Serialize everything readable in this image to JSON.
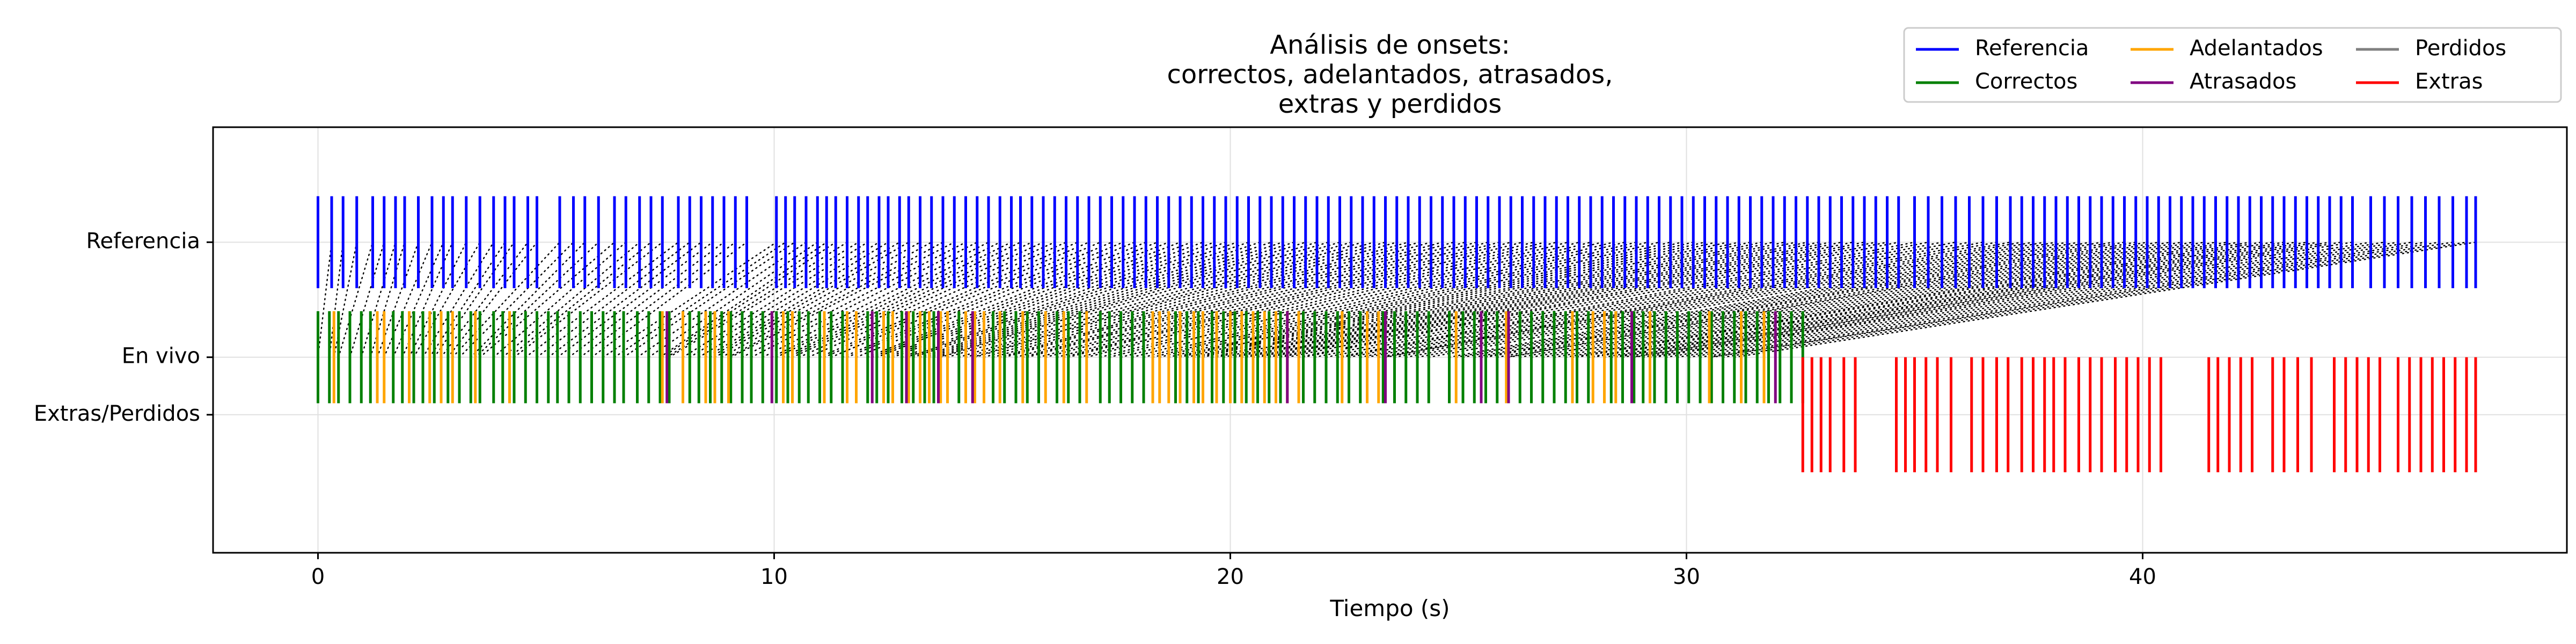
{
  "chart_data": {
    "type": "event",
    "title_lines": [
      "Análisis de onsets:",
      "correctos, adelantados, atrasados,",
      "extras y perdidos"
    ],
    "xlabel": "Tiempo (s)",
    "ylabel": "",
    "xlim": [
      -2.3,
      49.3
    ],
    "xticks": [
      0,
      10,
      20,
      30,
      40
    ],
    "grid": true,
    "rows": [
      {
        "name": "Referencia",
        "y": 1.0
      },
      {
        "name": "En vivo",
        "y": 0.0
      },
      {
        "name": "Extras/Perdidos",
        "y": -0.5
      }
    ],
    "ylim": [
      -1.7,
      2.0
    ],
    "legend": {
      "placement": "top-right",
      "entries": [
        {
          "name": "Referencia",
          "color": "#0000ff"
        },
        {
          "name": "Correctos",
          "color": "#008000"
        },
        {
          "name": "Adelantados",
          "color": "#ffa500"
        },
        {
          "name": "Atrasados",
          "color": "#800080"
        },
        {
          "name": "Perdidos",
          "color": "#808080"
        },
        {
          "name": "Extras",
          "color": "#ff0000"
        }
      ]
    },
    "series": {
      "reference": {
        "color": "#0000ff",
        "y_range": [
          0.6,
          1.4
        ],
        "x": [
          0.0,
          0.3,
          0.55,
          0.85,
          1.2,
          1.45,
          1.7,
          1.9,
          2.2,
          2.5,
          2.75,
          2.95,
          3.25,
          3.55,
          3.85,
          4.1,
          4.3,
          4.6,
          4.8,
          5.3,
          5.6,
          5.85,
          6.15,
          6.5,
          6.75,
          7.05,
          7.3,
          7.55,
          7.9,
          8.15,
          8.4,
          8.65,
          8.9,
          9.15,
          9.4,
          10.05,
          10.25,
          10.45,
          10.7,
          10.95,
          11.15,
          11.35,
          11.6,
          11.85,
          12.05,
          12.3,
          12.5,
          12.75,
          12.95,
          13.2,
          13.45,
          13.7,
          13.95,
          14.2,
          14.45,
          14.7,
          14.95,
          15.2,
          15.4,
          15.65,
          15.9,
          16.15,
          16.4,
          16.65,
          16.9,
          17.15,
          17.4,
          17.65,
          17.9,
          18.15,
          18.4,
          18.65,
          18.9,
          19.15,
          19.4,
          19.65,
          19.9,
          20.15,
          20.4,
          20.65,
          20.9,
          21.15,
          21.4,
          21.65,
          21.9,
          22.15,
          22.4,
          22.65,
          22.9,
          23.15,
          23.4,
          23.65,
          23.9,
          24.15,
          24.4,
          24.65,
          24.9,
          25.15,
          25.4,
          25.65,
          25.9,
          26.15,
          26.4,
          26.65,
          26.9,
          27.15,
          27.4,
          27.65,
          27.9,
          28.15,
          28.4,
          28.65,
          28.9,
          29.15,
          29.4,
          29.65,
          29.9,
          30.15,
          30.4,
          30.65,
          30.9,
          31.15,
          31.4,
          31.65,
          31.9,
          32.15,
          32.4,
          32.65,
          32.9,
          33.15,
          33.4,
          33.65,
          33.9,
          34.15,
          34.4,
          34.65,
          35.0,
          35.3,
          35.6,
          35.9,
          36.2,
          36.5,
          36.8,
          37.1,
          37.35,
          37.6,
          37.85,
          38.1,
          38.35,
          38.6,
          38.85,
          39.1,
          39.35,
          39.6,
          39.85,
          40.1,
          40.35,
          40.6,
          40.85,
          41.1,
          41.35,
          41.6,
          41.85,
          42.1,
          42.35,
          42.6,
          42.85,
          43.1,
          43.35,
          43.6,
          43.85,
          44.1,
          44.35,
          44.6,
          45.0,
          45.3,
          45.6,
          45.9,
          46.2,
          46.5,
          46.8,
          47.1,
          47.3
        ]
      },
      "correctos": {
        "color": "#008000",
        "y_range": [
          -0.4,
          0.4
        ],
        "x": [
          0.0,
          0.25,
          0.45,
          0.7,
          0.95,
          1.15,
          1.65,
          1.85,
          2.1,
          2.3,
          2.55,
          2.85,
          3.1,
          3.35,
          3.55,
          3.85,
          4.05,
          4.3,
          4.55,
          4.8,
          5.05,
          5.25,
          5.5,
          5.75,
          6.0,
          6.25,
          6.5,
          6.7,
          7.0,
          7.25,
          7.5,
          7.7,
          8.15,
          8.35,
          8.6,
          8.85,
          9.05,
          9.3,
          9.5,
          9.75,
          10.05,
          10.3,
          10.55,
          10.75,
          11.0,
          11.25,
          11.5,
          12.05,
          12.25,
          12.5,
          12.8,
          13.05,
          13.3,
          13.5,
          14.05,
          14.8,
          15.05,
          15.3,
          15.55,
          15.8,
          16.2,
          16.45,
          16.7,
          17.15,
          17.35,
          17.6,
          17.85,
          18.1,
          18.8,
          19.05,
          19.3,
          19.6,
          19.85,
          20.1,
          20.35,
          20.6,
          20.85,
          21.1,
          21.6,
          21.85,
          22.1,
          22.35,
          22.6,
          22.85,
          23.35,
          23.6,
          23.85,
          24.1,
          24.35,
          24.8,
          25.1,
          25.35,
          25.6,
          25.85,
          26.35,
          26.6,
          26.85,
          27.1,
          27.35,
          27.6,
          27.85,
          28.35,
          28.6,
          28.85,
          29.05,
          29.3,
          29.55,
          29.8,
          30.05,
          30.3,
          30.55,
          30.8,
          31.05,
          31.3,
          31.55,
          31.8,
          32.05,
          32.3,
          32.55
        ]
      },
      "adelantados": {
        "color": "#ffa500",
        "y_range": [
          -0.4,
          0.4
        ],
        "x": [
          0.35,
          1.3,
          1.45,
          2.0,
          2.45,
          2.7,
          2.95,
          3.45,
          4.2,
          7.55,
          8.0,
          8.5,
          8.7,
          9.0,
          10.2,
          10.4,
          11.1,
          11.6,
          11.8,
          12.4,
          12.6,
          12.95,
          13.2,
          13.4,
          13.65,
          13.8,
          14.2,
          14.4,
          14.6,
          14.95,
          15.45,
          15.95,
          16.35,
          16.85,
          18.3,
          18.45,
          18.65,
          18.9,
          19.2,
          19.4,
          19.7,
          20.0,
          20.25,
          20.5,
          20.75,
          21.0,
          21.25,
          21.5,
          22.45,
          23.0,
          23.25,
          24.95,
          26.05,
          27.5,
          27.95,
          28.2,
          28.45,
          29.2,
          30.5,
          31.2,
          31.7
        ]
      },
      "atrasados": {
        "color": "#800080",
        "y_range": [
          -0.4,
          0.4
        ],
        "x": [
          7.65,
          9.95,
          12.15,
          12.9,
          13.6,
          14.35,
          21.25,
          23.4,
          25.5,
          26.1,
          28.8,
          31.95
        ]
      },
      "extras": {
        "color": "#ff0000",
        "y_range": [
          -1.0,
          0.0
        ],
        "x": [
          32.55,
          32.75,
          32.95,
          33.15,
          33.45,
          33.7,
          34.6,
          34.8,
          35.0,
          35.25,
          35.5,
          35.8,
          36.25,
          36.5,
          36.8,
          37.05,
          37.35,
          37.6,
          37.85,
          38.05,
          38.3,
          38.6,
          38.85,
          39.1,
          39.4,
          39.65,
          39.9,
          40.15,
          40.4,
          41.45,
          41.65,
          41.9,
          42.15,
          42.4,
          42.85,
          43.1,
          43.4,
          43.7,
          44.2,
          44.45,
          44.7,
          44.95,
          45.2,
          45.6,
          45.85,
          46.1,
          46.35,
          46.6,
          46.85,
          47.1,
          47.3
        ]
      },
      "perdidos": {
        "color": "#808080",
        "x": []
      }
    },
    "matches": {
      "style": "dotted",
      "color": "#000000",
      "from_row": "En vivo",
      "to_row": "Referencia",
      "pairs": [
        [
          0.0,
          0.3
        ],
        [
          0.25,
          0.55
        ],
        [
          0.35,
          0.85
        ],
        [
          0.45,
          1.2
        ],
        [
          0.7,
          1.45
        ],
        [
          0.95,
          1.7
        ],
        [
          1.15,
          1.9
        ],
        [
          1.3,
          2.2
        ],
        [
          1.45,
          2.5
        ],
        [
          1.65,
          2.75
        ],
        [
          1.85,
          2.95
        ],
        [
          2.0,
          3.25
        ],
        [
          2.1,
          3.55
        ],
        [
          2.3,
          3.85
        ],
        [
          2.45,
          4.1
        ],
        [
          2.55,
          4.3
        ],
        [
          2.7,
          4.6
        ],
        [
          2.85,
          4.8
        ],
        [
          2.95,
          5.3
        ],
        [
          3.1,
          5.6
        ],
        [
          3.35,
          5.85
        ],
        [
          3.45,
          6.15
        ],
        [
          3.55,
          6.5
        ],
        [
          3.85,
          6.75
        ],
        [
          4.05,
          7.05
        ],
        [
          4.2,
          7.3
        ],
        [
          4.3,
          7.55
        ],
        [
          4.55,
          7.9
        ],
        [
          4.8,
          8.15
        ],
        [
          5.05,
          8.4
        ],
        [
          5.25,
          8.65
        ],
        [
          5.5,
          8.9
        ],
        [
          5.75,
          9.15
        ],
        [
          6.0,
          9.4
        ],
        [
          6.25,
          10.05
        ],
        [
          6.5,
          10.25
        ],
        [
          6.7,
          10.45
        ],
        [
          7.0,
          10.7
        ],
        [
          7.25,
          10.95
        ],
        [
          7.5,
          11.15
        ],
        [
          7.55,
          11.35
        ],
        [
          7.65,
          11.6
        ],
        [
          7.7,
          11.85
        ],
        [
          8.0,
          12.05
        ],
        [
          8.15,
          12.3
        ],
        [
          8.35,
          12.5
        ],
        [
          8.5,
          12.75
        ],
        [
          8.6,
          12.95
        ],
        [
          8.7,
          13.2
        ],
        [
          8.85,
          13.45
        ],
        [
          9.0,
          13.7
        ],
        [
          9.05,
          13.95
        ],
        [
          9.3,
          14.2
        ],
        [
          9.5,
          14.45
        ],
        [
          9.75,
          14.7
        ],
        [
          9.95,
          14.95
        ],
        [
          10.05,
          15.2
        ],
        [
          10.2,
          15.4
        ],
        [
          10.3,
          15.65
        ],
        [
          10.4,
          15.9
        ],
        [
          10.55,
          16.15
        ],
        [
          10.75,
          16.4
        ],
        [
          11.0,
          16.65
        ],
        [
          11.1,
          16.9
        ],
        [
          11.25,
          17.15
        ],
        [
          11.5,
          17.4
        ],
        [
          11.6,
          17.65
        ],
        [
          11.8,
          17.9
        ],
        [
          12.05,
          18.15
        ],
        [
          12.15,
          18.4
        ],
        [
          12.25,
          18.65
        ],
        [
          12.4,
          18.9
        ],
        [
          12.5,
          19.15
        ],
        [
          12.6,
          19.4
        ],
        [
          12.8,
          19.65
        ],
        [
          12.9,
          19.9
        ],
        [
          12.95,
          20.15
        ],
        [
          13.05,
          20.4
        ],
        [
          13.2,
          20.65
        ],
        [
          13.3,
          20.9
        ],
        [
          13.4,
          21.15
        ],
        [
          13.5,
          21.4
        ],
        [
          13.6,
          21.65
        ],
        [
          13.65,
          21.9
        ],
        [
          13.8,
          22.15
        ],
        [
          14.05,
          22.4
        ],
        [
          14.2,
          22.65
        ],
        [
          14.35,
          22.9
        ],
        [
          14.4,
          23.15
        ],
        [
          14.6,
          23.4
        ],
        [
          14.8,
          23.65
        ],
        [
          14.95,
          23.9
        ],
        [
          15.05,
          24.15
        ],
        [
          15.3,
          24.4
        ],
        [
          15.45,
          24.65
        ],
        [
          15.55,
          24.9
        ],
        [
          15.8,
          25.15
        ],
        [
          15.95,
          25.4
        ],
        [
          16.2,
          25.65
        ],
        [
          16.35,
          25.9
        ],
        [
          16.45,
          26.15
        ],
        [
          16.7,
          26.4
        ],
        [
          16.85,
          26.65
        ],
        [
          17.15,
          26.9
        ],
        [
          17.35,
          27.15
        ],
        [
          17.6,
          27.4
        ],
        [
          17.85,
          27.65
        ],
        [
          18.1,
          27.9
        ],
        [
          18.3,
          28.15
        ],
        [
          18.45,
          28.4
        ],
        [
          18.65,
          28.65
        ],
        [
          18.8,
          28.9
        ],
        [
          18.9,
          29.15
        ],
        [
          19.05,
          29.4
        ],
        [
          19.2,
          29.65
        ],
        [
          19.3,
          29.9
        ],
        [
          19.4,
          30.15
        ],
        [
          19.6,
          30.4
        ],
        [
          19.7,
          30.65
        ],
        [
          19.85,
          30.9
        ],
        [
          20.0,
          31.15
        ],
        [
          20.1,
          31.4
        ],
        [
          20.25,
          31.65
        ],
        [
          20.35,
          31.9
        ],
        [
          20.5,
          32.15
        ],
        [
          20.6,
          32.4
        ],
        [
          20.75,
          32.65
        ],
        [
          20.85,
          32.9
        ],
        [
          21.0,
          33.15
        ],
        [
          21.1,
          33.4
        ],
        [
          21.25,
          33.65
        ],
        [
          21.5,
          33.9
        ],
        [
          21.6,
          34.15
        ],
        [
          21.85,
          34.4
        ],
        [
          22.1,
          34.65
        ],
        [
          22.35,
          35.0
        ],
        [
          22.45,
          35.3
        ],
        [
          22.6,
          35.6
        ],
        [
          22.85,
          35.9
        ],
        [
          23.0,
          36.2
        ],
        [
          23.25,
          36.5
        ],
        [
          23.35,
          36.8
        ],
        [
          23.4,
          37.1
        ],
        [
          23.6,
          37.35
        ],
        [
          23.85,
          37.6
        ],
        [
          24.1,
          37.85
        ],
        [
          24.35,
          38.1
        ],
        [
          24.8,
          38.35
        ],
        [
          24.95,
          38.6
        ],
        [
          25.1,
          38.85
        ],
        [
          25.35,
          39.1
        ],
        [
          25.5,
          39.35
        ],
        [
          25.6,
          39.6
        ],
        [
          25.85,
          39.85
        ],
        [
          26.05,
          40.1
        ],
        [
          26.1,
          40.35
        ],
        [
          26.35,
          40.6
        ],
        [
          26.6,
          40.85
        ],
        [
          26.85,
          41.1
        ],
        [
          27.1,
          41.35
        ],
        [
          27.35,
          41.6
        ],
        [
          27.5,
          41.85
        ],
        [
          27.6,
          42.1
        ],
        [
          27.85,
          42.35
        ],
        [
          27.95,
          42.6
        ],
        [
          28.2,
          42.85
        ],
        [
          28.35,
          43.1
        ],
        [
          28.45,
          43.35
        ],
        [
          28.6,
          43.6
        ],
        [
          28.8,
          43.85
        ],
        [
          28.85,
          44.1
        ],
        [
          29.05,
          44.35
        ],
        [
          29.2,
          44.6
        ],
        [
          29.3,
          45.0
        ],
        [
          29.55,
          45.3
        ],
        [
          29.8,
          45.6
        ],
        [
          30.05,
          45.9
        ],
        [
          30.3,
          46.2
        ],
        [
          30.5,
          46.5
        ],
        [
          30.55,
          46.8
        ],
        [
          30.8,
          47.1
        ],
        [
          31.05,
          47.3
        ]
      ]
    }
  }
}
